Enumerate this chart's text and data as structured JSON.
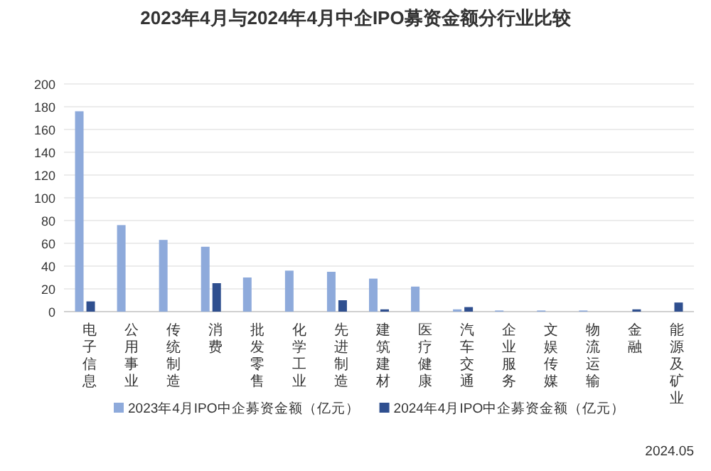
{
  "chart_data": {
    "type": "bar",
    "title": "2023年4月与2024年4月中企IPO募资金额分行业比较",
    "categories": [
      "电子信息",
      "公用事业",
      "传统制造",
      "消费",
      "批发零售",
      "化学工业",
      "先进制造",
      "建筑建材",
      "医疗健康",
      "汽车交通",
      "企业服务",
      "文娱传媒",
      "物流运输",
      "金融",
      "能源及矿业"
    ],
    "series": [
      {
        "name": "2023年4月IPO中企募资金额（亿元）",
        "color": "#8eaadb",
        "values": [
          176,
          76,
          63,
          57,
          30,
          36,
          35,
          29,
          22,
          2,
          1,
          1,
          1,
          0,
          0
        ]
      },
      {
        "name": "2024年4月IPO中企募资金额（亿元）",
        "color": "#2f4f8f",
        "values": [
          9,
          0,
          0,
          25,
          0,
          0,
          10,
          2,
          0,
          4,
          0,
          0,
          0,
          2,
          8
        ]
      }
    ],
    "ylim": [
      0,
      200
    ],
    "yticks": [
      0,
      20,
      40,
      60,
      80,
      100,
      120,
      140,
      160,
      180,
      200
    ],
    "grid": "y",
    "legend": "bottom",
    "annotations": [
      "2024.05"
    ]
  }
}
